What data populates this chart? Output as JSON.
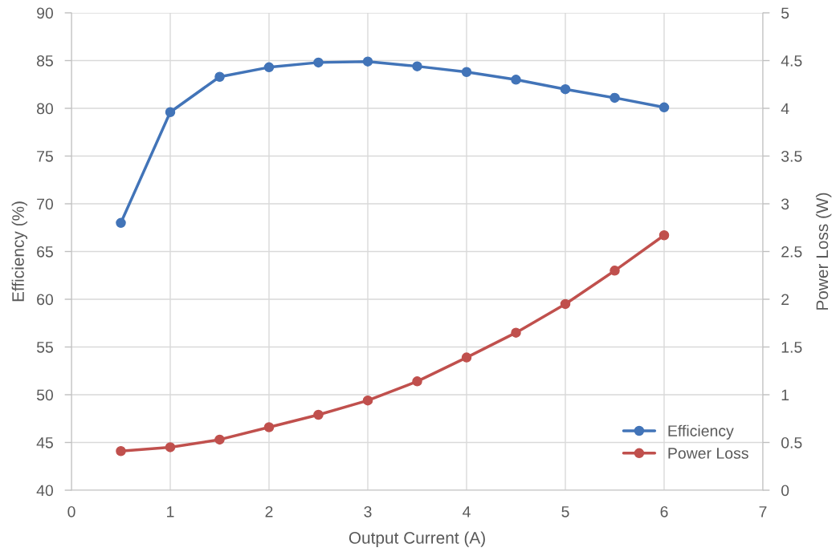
{
  "chart_data": {
    "type": "line",
    "xlabel": "Output Current (A)",
    "ylabel": "Efficiency (%)",
    "y2label": "Power Loss (W)",
    "x": [
      0.5,
      1,
      1.5,
      2,
      2.5,
      3,
      3.5,
      4,
      4.5,
      5,
      5.5,
      6
    ],
    "series": [
      {
        "name": "Efficiency",
        "color": "#4274b8",
        "values": [
          68.0,
          79.6,
          83.3,
          84.3,
          84.8,
          84.9,
          84.4,
          83.8,
          83.0,
          82.0,
          81.1,
          80.1
        ]
      },
      {
        "name": "Power Loss",
        "color": "#c0504d",
        "axis": "y2",
        "values": [
          0.41,
          0.45,
          0.53,
          0.66,
          0.79,
          0.94,
          1.14,
          1.39,
          1.65,
          1.95,
          2.3,
          2.67
        ]
      }
    ],
    "xlim": [
      0,
      7
    ],
    "xticks": [
      0,
      1,
      2,
      3,
      4,
      5,
      6,
      7
    ],
    "ylim": [
      40,
      90
    ],
    "yticks": [
      40,
      45,
      50,
      55,
      60,
      65,
      70,
      75,
      80,
      85,
      90
    ],
    "y2lim": [
      0,
      5
    ],
    "y2ticks": [
      0,
      0.5,
      1,
      1.5,
      2,
      2.5,
      3,
      3.5,
      4,
      4.5,
      5
    ],
    "grid": true,
    "legend": "bottom right",
    "marker": "circle",
    "line_style": "solid"
  }
}
